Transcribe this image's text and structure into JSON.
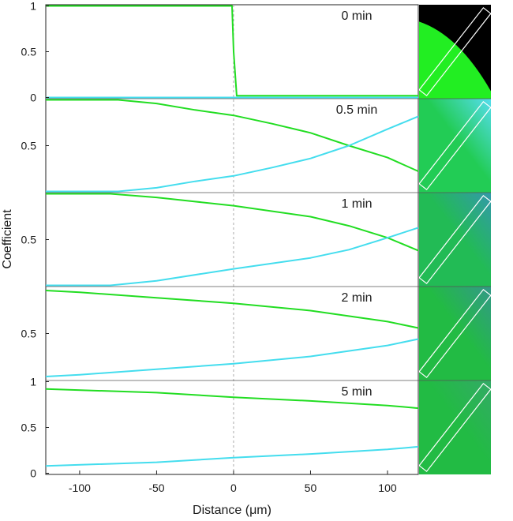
{
  "chart_data": {
    "type": "line",
    "xlabel": "Distance (μm)",
    "ylabel": "Coefficient",
    "xlim": [
      -122,
      120
    ],
    "x_ticks": [
      -100,
      -50,
      0,
      50,
      100
    ],
    "x_tick_labels": [
      "-100",
      "-50",
      "0",
      "50",
      "100"
    ],
    "boundary_x": 0,
    "colors": {
      "green_series": "#22dd22",
      "cyan_series": "#44ddee",
      "guide": "#999999",
      "axis": "#222222"
    },
    "panels": [
      {
        "label": "0 min",
        "ylim": [
          0,
          1
        ],
        "y_tick_labels": [
          "0",
          "0.5",
          "1"
        ],
        "series": [
          {
            "name": "green",
            "x": [
              -122,
              -1,
              0,
              2,
              120
            ],
            "values": [
              1,
              1,
              0.5,
              0.02,
              0.02
            ]
          },
          {
            "name": "cyan",
            "x": [
              -122,
              120
            ],
            "values": [
              0,
              0
            ]
          }
        ],
        "image_tint": {
          "base": "#000000",
          "fill": "#22ee22"
        }
      },
      {
        "label": "0.5 min",
        "ylim": [
          0,
          1
        ],
        "y_tick_labels": [
          "0.5"
        ],
        "series": [
          {
            "name": "green",
            "x": [
              -122,
              -75,
              -50,
              -25,
              0,
              25,
              50,
              75,
              100,
              120
            ],
            "values": [
              1,
              1,
              0.96,
              0.89,
              0.83,
              0.74,
              0.64,
              0.5,
              0.37,
              0.22
            ]
          },
          {
            "name": "cyan",
            "x": [
              -122,
              -75,
              -50,
              -25,
              0,
              25,
              50,
              75,
              100,
              120
            ],
            "values": [
              0,
              0,
              0.04,
              0.11,
              0.17,
              0.26,
              0.36,
              0.5,
              0.68,
              0.82
            ]
          }
        ],
        "image_tint": {
          "base": "#22cc55",
          "fill": "#55ddee"
        }
      },
      {
        "label": "1 min",
        "ylim": [
          0,
          1
        ],
        "y_tick_labels": [
          "0.5"
        ],
        "series": [
          {
            "name": "green",
            "x": [
              -122,
              -80,
              -50,
              0,
              50,
              75,
              100,
              120
            ],
            "values": [
              1,
              1,
              0.96,
              0.87,
              0.75,
              0.65,
              0.52,
              0.38
            ]
          },
          {
            "name": "cyan",
            "x": [
              -122,
              -80,
              -50,
              0,
              50,
              75,
              100,
              120
            ],
            "values": [
              0,
              0,
              0.05,
              0.18,
              0.3,
              0.39,
              0.52,
              0.63
            ]
          }
        ],
        "image_tint": {
          "base": "#22bb55",
          "fill": "#3399aa"
        }
      },
      {
        "label": "2 min",
        "ylim": [
          0,
          1
        ],
        "y_tick_labels": [
          "0.5"
        ],
        "series": [
          {
            "name": "green",
            "x": [
              -122,
              -100,
              -50,
              0,
              50,
              100,
              120
            ],
            "values": [
              0.97,
              0.95,
              0.89,
              0.83,
              0.75,
              0.63,
              0.56
            ]
          },
          {
            "name": "cyan",
            "x": [
              -122,
              -100,
              -50,
              0,
              50,
              100,
              120
            ],
            "values": [
              0.03,
              0.05,
              0.11,
              0.17,
              0.25,
              0.37,
              0.44
            ]
          }
        ],
        "image_tint": {
          "base": "#22bb44",
          "fill": "#339988"
        }
      },
      {
        "label": "5 min",
        "ylim": [
          0,
          1
        ],
        "y_tick_labels": [
          "0",
          "0.5",
          "1"
        ],
        "series": [
          {
            "name": "green",
            "x": [
              -122,
              -50,
              0,
              50,
              100,
              120
            ],
            "values": [
              0.92,
              0.88,
              0.83,
              0.79,
              0.74,
              0.71
            ]
          },
          {
            "name": "cyan",
            "x": [
              -122,
              -50,
              0,
              50,
              100,
              120
            ],
            "values": [
              0.08,
              0.12,
              0.17,
              0.21,
              0.26,
              0.29
            ]
          }
        ],
        "image_tint": {
          "base": "#22bb44",
          "fill": "#33aa66"
        }
      }
    ]
  }
}
